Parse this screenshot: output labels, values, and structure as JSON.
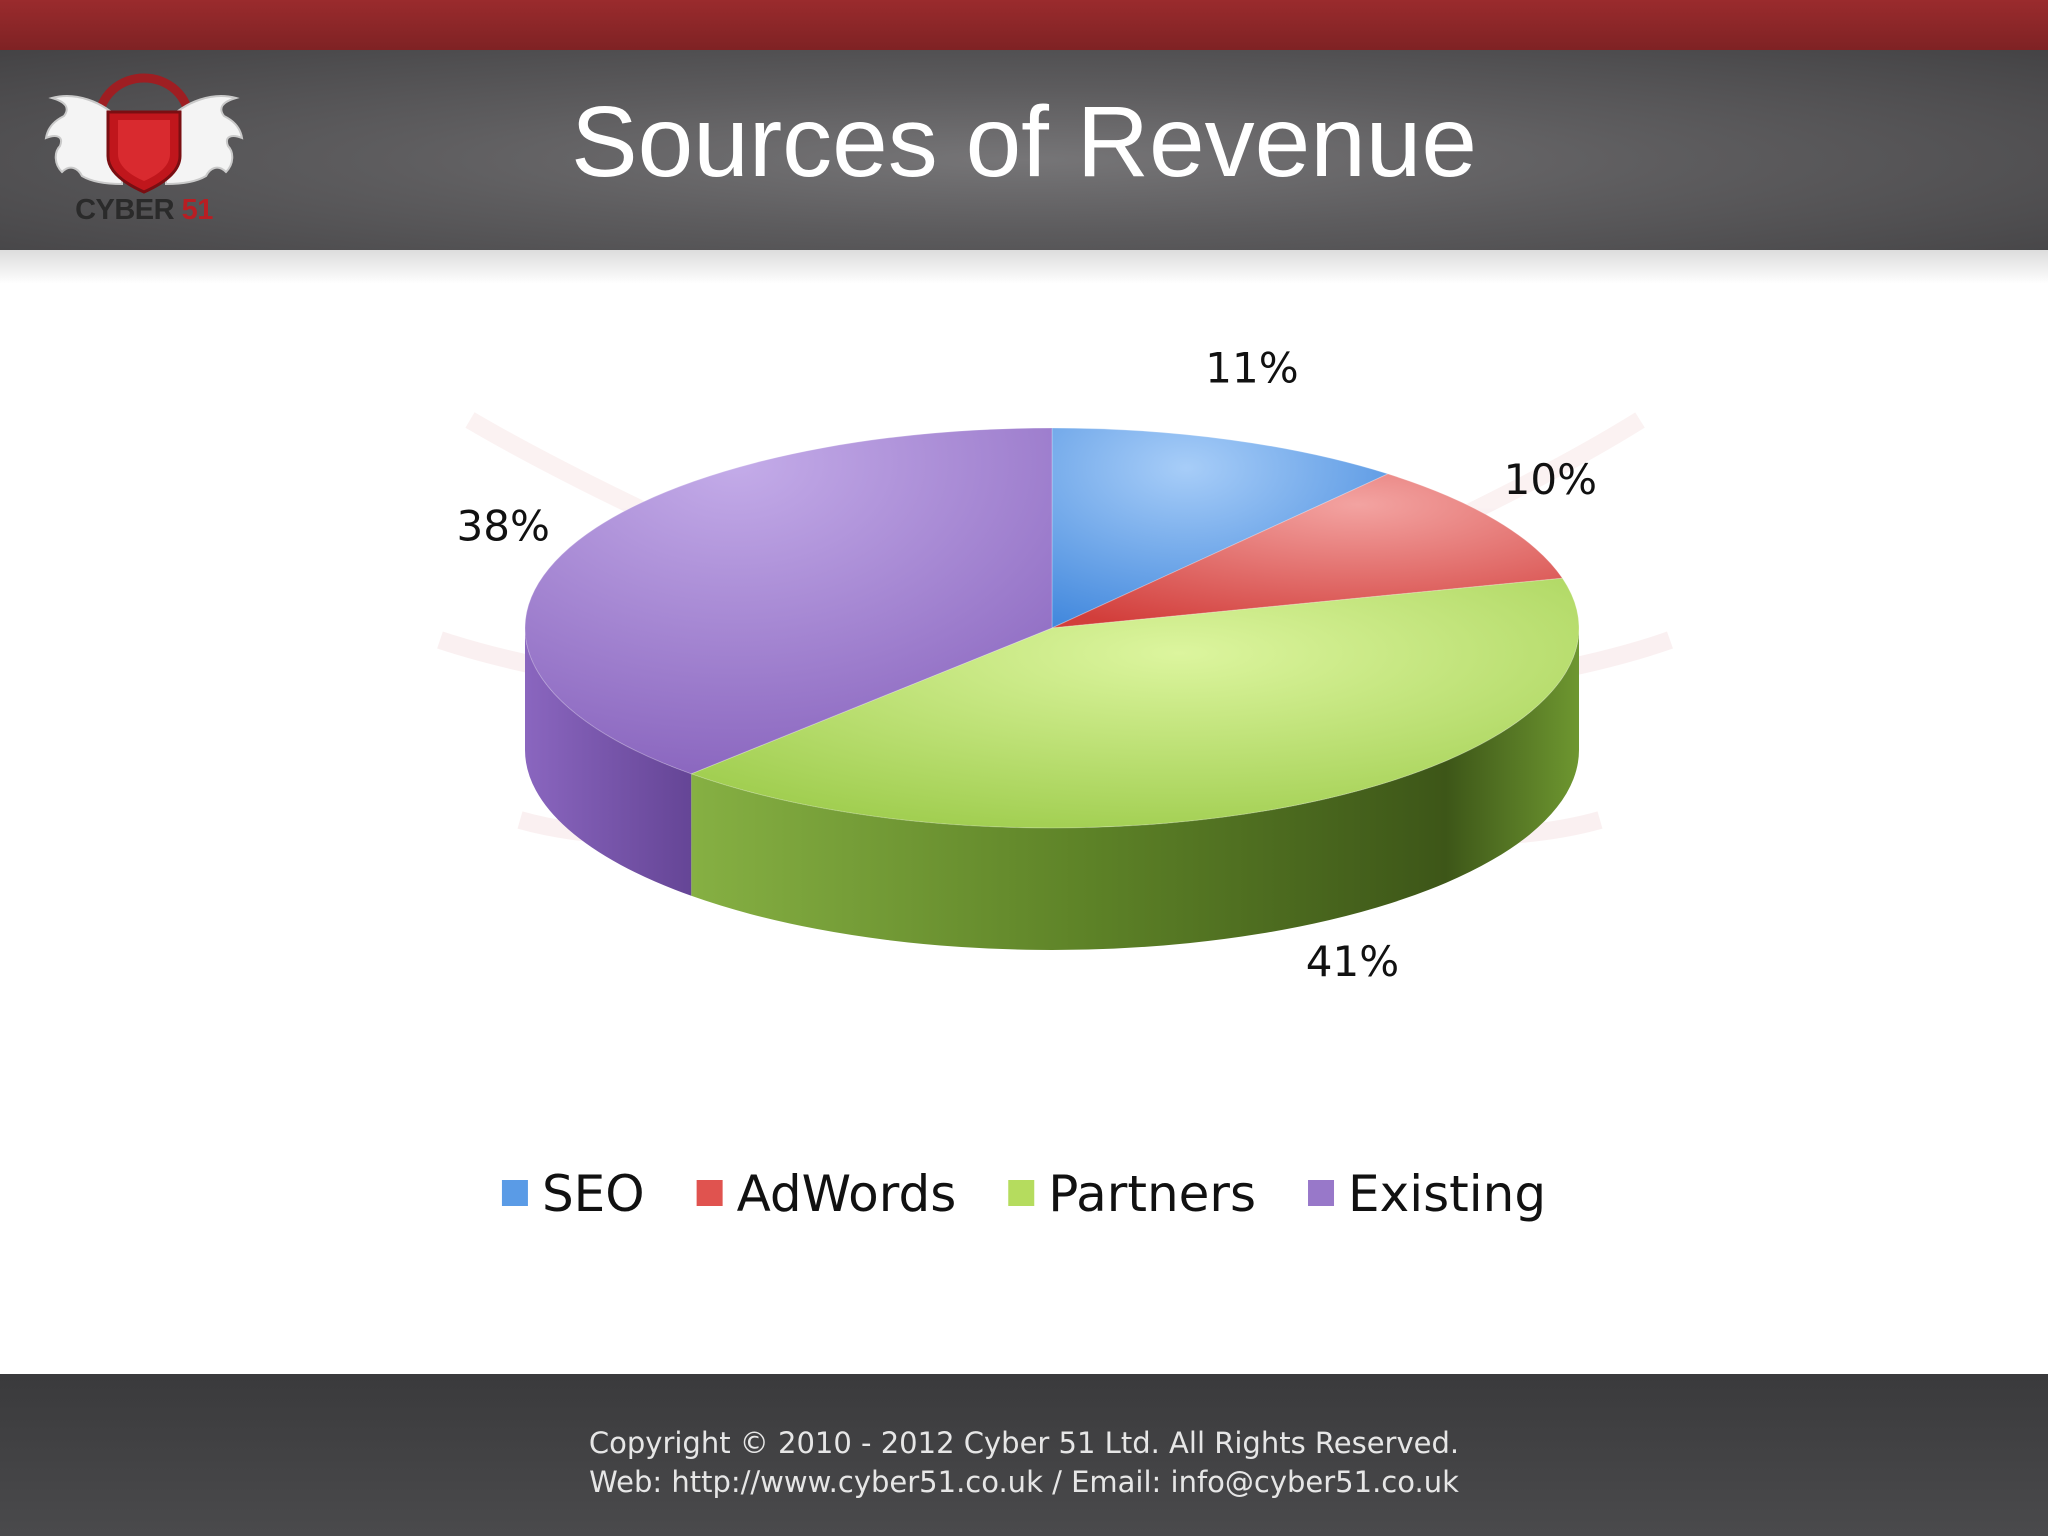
{
  "header": {
    "title": "Sources of Revenue",
    "logo_word1": "CYBER",
    "logo_word2": "51"
  },
  "colors": {
    "top_strip": "#8b2426",
    "header": "#5d5c5e",
    "footer": "#424244",
    "SEO": "#5a9be6",
    "AdWords": "#e0534f",
    "Partners": "#b5dc5e",
    "Existing": "#9878c9"
  },
  "chart_data": {
    "type": "pie",
    "style": "3d",
    "title": "Sources of Revenue",
    "categories": [
      "SEO",
      "AdWords",
      "Partners",
      "Existing"
    ],
    "values": [
      11,
      10,
      41,
      38
    ],
    "labels": [
      "11%",
      "10%",
      "41%",
      "38%"
    ],
    "unit": "%",
    "legend": "bottom"
  },
  "footer": {
    "line1": "Copyright © 2010 - 2012 Cyber 51 Ltd. All Rights Reserved.",
    "line2": "Web: http://www.cyber51.co.uk / Email: info@cyber51.co.uk"
  }
}
